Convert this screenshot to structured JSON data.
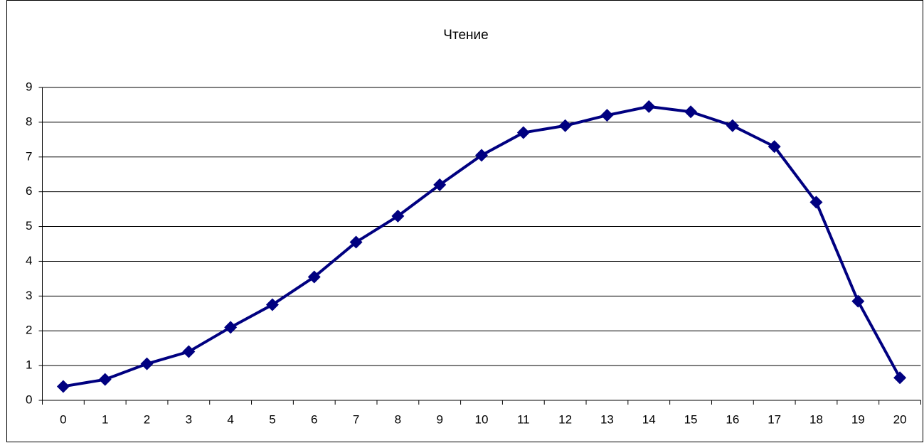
{
  "chart_data": {
    "type": "line",
    "title": "Чтение",
    "categories": [
      0,
      1,
      2,
      3,
      4,
      5,
      6,
      7,
      8,
      9,
      10,
      11,
      12,
      13,
      14,
      15,
      16,
      17,
      18,
      19,
      20
    ],
    "series": [
      {
        "name": "Чтение",
        "color": "#000080",
        "values": [
          0.4,
          0.6,
          1.05,
          1.4,
          2.1,
          2.75,
          3.55,
          4.55,
          5.3,
          6.2,
          7.05,
          7.7,
          7.9,
          8.2,
          8.45,
          8.3,
          7.9,
          7.3,
          5.7,
          2.85,
          0.65
        ]
      }
    ],
    "ylim": [
      0,
      9
    ],
    "yticks": [
      0,
      1,
      2,
      3,
      4,
      5,
      6,
      7,
      8,
      9
    ],
    "grid": true
  }
}
